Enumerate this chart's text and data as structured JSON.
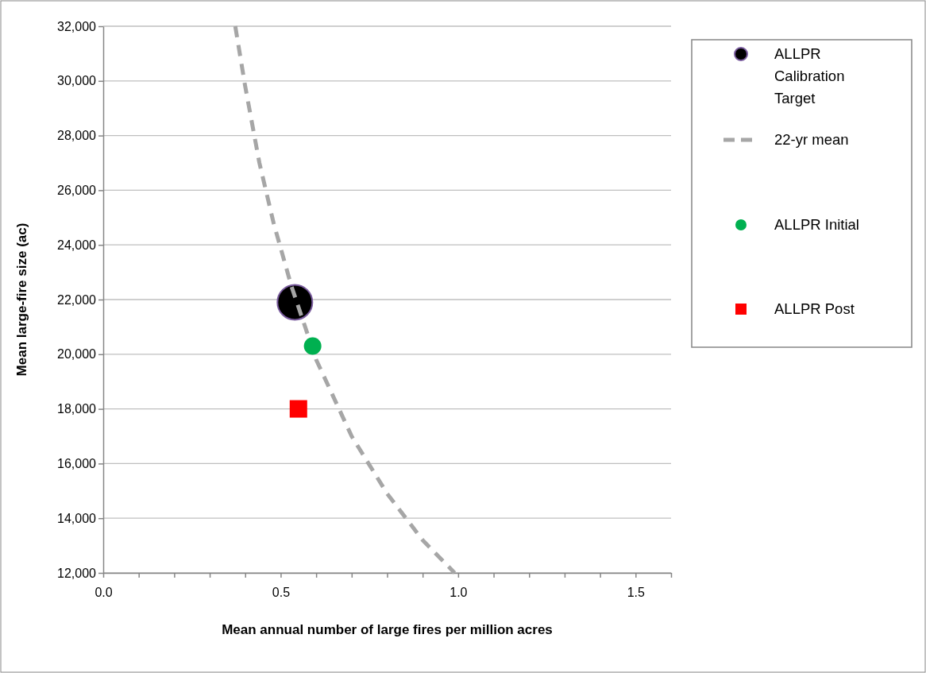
{
  "chart_data": {
    "type": "scatter",
    "xlabel": "Mean annual number of large fires per million acres",
    "ylabel": "Mean large-fire size (ac)",
    "xlim": [
      0,
      1.6
    ],
    "xticks": [
      {
        "value": 0,
        "label": "0.0"
      },
      {
        "value": 0.1,
        "label": null
      },
      {
        "value": 0.2,
        "label": null
      },
      {
        "value": 0.3,
        "label": null
      },
      {
        "value": 0.4,
        "label": null
      },
      {
        "value": 0.5,
        "label": "0.5"
      },
      {
        "value": 0.6,
        "label": null
      },
      {
        "value": 0.7,
        "label": null
      },
      {
        "value": 0.8,
        "label": null
      },
      {
        "value": 0.9,
        "label": null
      },
      {
        "value": 1,
        "label": "1.0"
      },
      {
        "value": 1.1,
        "label": null
      },
      {
        "value": 1.2,
        "label": null
      },
      {
        "value": 1.3,
        "label": null
      },
      {
        "value": 1.4,
        "label": null
      },
      {
        "value": 1.5,
        "label": "1.5"
      },
      {
        "value": 1.6,
        "label": null
      }
    ],
    "ylim": [
      12000,
      32000
    ],
    "yticks": [
      {
        "value": 12000,
        "label": "12,000"
      },
      {
        "value": 14000,
        "label": "14,000"
      },
      {
        "value": 16000,
        "label": "16,000"
      },
      {
        "value": 18000,
        "label": "18,000"
      },
      {
        "value": 20000,
        "label": "20,000"
      },
      {
        "value": 22000,
        "label": "22,000"
      },
      {
        "value": 24000,
        "label": "24,000"
      },
      {
        "value": 26000,
        "label": "26,000"
      },
      {
        "value": 28000,
        "label": "28,000"
      },
      {
        "value": 30000,
        "label": "30,000"
      },
      {
        "value": 32000,
        "label": "32,000"
      }
    ],
    "grid": "y",
    "legend": "top right",
    "series": [
      {
        "name": "ALLPR Calibration Target",
        "marker": "circle",
        "color": "#000000",
        "x": [
          0.54
        ],
        "values": [
          21900
        ]
      },
      {
        "name": "22-yr mean",
        "type": "line",
        "marker": "none",
        "line_style": "dashed",
        "color": "#a6a6a6",
        "x": [
          0.372,
          0.4,
          0.44,
          0.48,
          0.53,
          0.6,
          0.7,
          0.8,
          0.9,
          0.99
        ],
        "values": [
          32000,
          29800,
          27000,
          24800,
          22500,
          19800,
          17000,
          14900,
          13200,
          12000
        ]
      },
      {
        "name": "ALLPR Initial",
        "marker": "circle",
        "color": "#00b050",
        "x": [
          0.59
        ],
        "values": [
          20300
        ]
      },
      {
        "name": "ALLPR Post",
        "marker": "square",
        "color": "#ff0000",
        "x": [
          0.55
        ],
        "values": [
          18000
        ]
      }
    ]
  }
}
